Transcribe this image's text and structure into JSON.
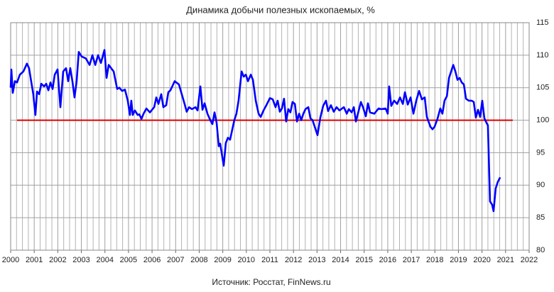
{
  "chart_data": {
    "type": "line",
    "title": "Динамика добычи полезных ископаемых, %",
    "source": "Источник: Росстат, FinNews.ru",
    "xlim": [
      2000,
      2022
    ],
    "xticks": [
      2000,
      2001,
      2002,
      2003,
      2004,
      2005,
      2006,
      2007,
      2008,
      2009,
      2010,
      2011,
      2012,
      2013,
      2014,
      2015,
      2016,
      2017,
      2018,
      2019,
      2020,
      2021,
      2022
    ],
    "ylim": [
      80,
      115
    ],
    "yticks": [
      80,
      85,
      90,
      95,
      100,
      105,
      110,
      115
    ],
    "grid": true,
    "reference_line": {
      "value": 100,
      "color": "#e00000"
    },
    "series": [
      {
        "color": "#0000ff",
        "x": [
          2000.0,
          2000.03,
          2000.09,
          2000.18,
          2000.27,
          2000.39,
          2000.54,
          2000.69,
          2000.78,
          2000.87,
          2000.96,
          2001.05,
          2001.12,
          2001.21,
          2001.3,
          2001.42,
          2001.51,
          2001.6,
          2001.69,
          2001.78,
          2001.87,
          2001.99,
          2002.11,
          2002.23,
          2002.35,
          2002.44,
          2002.53,
          2002.62,
          2002.71,
          2002.8,
          2002.89,
          2003.01,
          2003.19,
          2003.35,
          2003.47,
          2003.59,
          2003.71,
          2003.83,
          2003.98,
          2004.07,
          2004.16,
          2004.37,
          2004.52,
          2004.61,
          2004.73,
          2004.85,
          2004.97,
          2005.06,
          2005.12,
          2005.18,
          2005.27,
          2005.39,
          2005.46,
          2005.55,
          2005.64,
          2005.76,
          2005.91,
          2006.09,
          2006.18,
          2006.27,
          2006.39,
          2006.48,
          2006.6,
          2006.69,
          2006.78,
          2006.96,
          2007.14,
          2007.26,
          2007.38,
          2007.47,
          2007.57,
          2007.69,
          2007.84,
          2007.93,
          2008.05,
          2008.14,
          2008.23,
          2008.35,
          2008.47,
          2008.56,
          2008.65,
          2008.74,
          2008.83,
          2008.89,
          2009.04,
          2009.13,
          2009.22,
          2009.31,
          2009.4,
          2009.49,
          2009.58,
          2009.67,
          2009.8,
          2009.89,
          2009.98,
          2010.07,
          2010.19,
          2010.28,
          2010.4,
          2010.52,
          2010.61,
          2010.73,
          2010.85,
          2011.0,
          2011.12,
          2011.24,
          2011.33,
          2011.42,
          2011.51,
          2011.6,
          2011.69,
          2011.78,
          2011.87,
          2011.96,
          2012.06,
          2012.15,
          2012.24,
          2012.33,
          2012.42,
          2012.51,
          2012.63,
          2012.72,
          2012.81,
          2013.02,
          2013.14,
          2013.26,
          2013.38,
          2013.47,
          2013.59,
          2013.71,
          2013.83,
          2013.95,
          2014.14,
          2014.26,
          2014.35,
          2014.47,
          2014.56,
          2014.65,
          2014.77,
          2014.86,
          2014.95,
          2015.07,
          2015.16,
          2015.25,
          2015.43,
          2015.61,
          2015.73,
          2015.91,
          2016.0,
          2016.06,
          2016.15,
          2016.27,
          2016.4,
          2016.52,
          2016.64,
          2016.73,
          2016.85,
          2016.97,
          2017.09,
          2017.21,
          2017.33,
          2017.45,
          2017.57,
          2017.66,
          2017.81,
          2017.9,
          2017.99,
          2018.11,
          2018.23,
          2018.32,
          2018.41,
          2018.51,
          2018.6,
          2018.69,
          2018.78,
          2018.87,
          2018.96,
          2019.05,
          2019.14,
          2019.23,
          2019.32,
          2019.44,
          2019.56,
          2019.65,
          2019.74,
          2019.83,
          2019.92,
          2020.01,
          2020.1,
          2020.19,
          2020.25,
          2020.34,
          2020.43,
          2020.49,
          2020.58,
          2020.67,
          2020.77
        ],
        "values": [
          105,
          107.8,
          104.2,
          106,
          105.8,
          107,
          107.5,
          108.7,
          108,
          106,
          104,
          100.8,
          104.4,
          104,
          105.6,
          105.2,
          105.6,
          104.6,
          105.8,
          104.8,
          107,
          107.8,
          102,
          107.5,
          108,
          106,
          108,
          106,
          103.5,
          106,
          110.5,
          109.8,
          109.5,
          108.5,
          110,
          108.5,
          110,
          108.8,
          110.8,
          106.5,
          108.5,
          107.5,
          104.8,
          105,
          104.5,
          104.7,
          103,
          100.8,
          103,
          100.8,
          101.5,
          100.8,
          100.9,
          100.2,
          101,
          101.8,
          101.2,
          102,
          103.5,
          102.5,
          104,
          102,
          102.3,
          104.3,
          104.6,
          106,
          105.5,
          104,
          102.5,
          101.3,
          102,
          101.7,
          102,
          101.5,
          105.2,
          101.6,
          102.6,
          101,
          100,
          99.4,
          101.2,
          99.6,
          96,
          96.4,
          93,
          96.5,
          97.3,
          97,
          98.5,
          100,
          101,
          103,
          107.5,
          106.7,
          107,
          106,
          107,
          106.2,
          103,
          101,
          100.5,
          101.5,
          102.3,
          103.4,
          103.2,
          102,
          103,
          101.3,
          101.8,
          103.3,
          99.8,
          101.7,
          101.2,
          102.8,
          102.5,
          99.8,
          101,
          100,
          101,
          101.7,
          102,
          100.3,
          100,
          97.7,
          100.4,
          102.2,
          103,
          101.4,
          102.3,
          101.3,
          102,
          101.5,
          102,
          101,
          101.7,
          101.2,
          102,
          99.8,
          101.5,
          102.8,
          102,
          100.6,
          102.6,
          101.2,
          101,
          101.8,
          101.7,
          101.8,
          101,
          105.2,
          102.2,
          103,
          102.5,
          103.5,
          102.5,
          104.3,
          102.4,
          103.5,
          101,
          103,
          104.5,
          103.2,
          103.5,
          100.5,
          99,
          98.6,
          99,
          100.2,
          101.8,
          101,
          103,
          103.7,
          106.5,
          107.5,
          108.5,
          107.5,
          106.2,
          106.5,
          105.8,
          105.5,
          103.3,
          103,
          103,
          102.8,
          100.4,
          101.6,
          100.5,
          103,
          100.3,
          99.6,
          99.2,
          87.5,
          87,
          86,
          89.5,
          90.5,
          91.2
        ]
      }
    ]
  }
}
